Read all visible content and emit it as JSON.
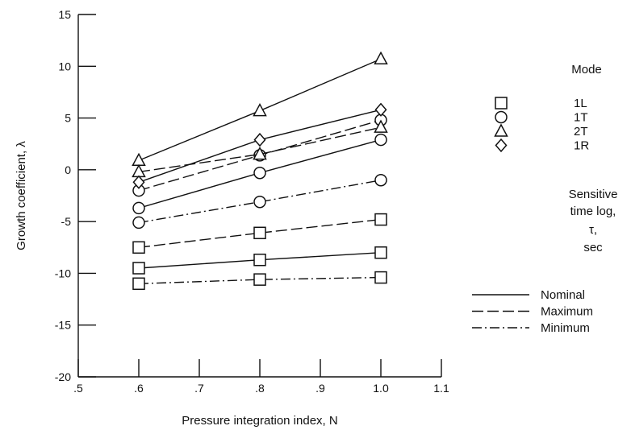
{
  "chart_data": {
    "type": "line",
    "title": "",
    "xlabel": "Pressure integration index, N",
    "ylabel": "Growth coefficient, λ",
    "xlim": [
      0.5,
      1.1
    ],
    "ylim": [
      -20,
      15
    ],
    "x_ticks": [
      0.5,
      0.6,
      0.7,
      0.8,
      0.9,
      1.0,
      1.1
    ],
    "x_tick_labels": [
      ".5",
      ".6",
      ".7",
      ".8",
      ".9",
      "1.0",
      "1.1"
    ],
    "y_ticks": [
      -20,
      -15,
      -10,
      -5,
      0,
      5,
      10,
      15
    ],
    "y_tick_labels": [
      "-20",
      "-15",
      "-10",
      "-5",
      "0",
      "5",
      "10",
      "15"
    ],
    "grid": false,
    "mode_legend": {
      "title": "Mode",
      "items": [
        {
          "marker": "square",
          "label": "1L"
        },
        {
          "marker": "circle",
          "label": "1T"
        },
        {
          "marker": "triangle",
          "label": "2T"
        },
        {
          "marker": "diamond",
          "label": "1R"
        }
      ]
    },
    "line_legend": {
      "title_lines": [
        "Sensitive",
        "time log,",
        "τ,",
        "sec"
      ],
      "items": [
        {
          "dash": "solid",
          "label": "Nominal"
        },
        {
          "dash": "dashed",
          "label": "Maximum"
        },
        {
          "dash": "dashdot",
          "label": "Minimum"
        }
      ]
    },
    "series": [
      {
        "mode": "1L",
        "tau": "Nominal",
        "marker": "square",
        "dash": "solid",
        "x": [
          0.6,
          0.8,
          1.0
        ],
        "y": [
          -9.5,
          -8.7,
          -8.0
        ]
      },
      {
        "mode": "1L",
        "tau": "Maximum",
        "marker": "square",
        "dash": "dashed",
        "x": [
          0.6,
          0.8,
          1.0
        ],
        "y": [
          -7.5,
          -6.1,
          -4.8
        ]
      },
      {
        "mode": "1L",
        "tau": "Minimum",
        "marker": "square",
        "dash": "dashdot",
        "x": [
          0.6,
          0.8,
          1.0
        ],
        "y": [
          -11.0,
          -10.6,
          -10.4
        ]
      },
      {
        "mode": "1T",
        "tau": "Nominal",
        "marker": "circle",
        "dash": "solid",
        "x": [
          0.6,
          0.8,
          1.0
        ],
        "y": [
          -3.7,
          -0.3,
          2.9
        ]
      },
      {
        "mode": "1T",
        "tau": "Maximum",
        "marker": "circle",
        "dash": "dashed",
        "x": [
          0.6,
          0.8,
          1.0
        ],
        "y": [
          -2.0,
          1.4,
          4.8
        ]
      },
      {
        "mode": "1T",
        "tau": "Minimum",
        "marker": "circle",
        "dash": "dashdot",
        "x": [
          0.6,
          0.8,
          1.0
        ],
        "y": [
          -5.1,
          -3.1,
          -1.0
        ]
      },
      {
        "mode": "2T",
        "tau": "Nominal",
        "marker": "triangle",
        "dash": "solid",
        "x": [
          0.6,
          0.8,
          1.0
        ],
        "y": [
          0.9,
          5.7,
          10.7
        ]
      },
      {
        "mode": "2T",
        "tau": "Maximum",
        "marker": "triangle",
        "dash": "dashed",
        "x": [
          0.6,
          0.8,
          1.0
        ],
        "y": [
          -0.2,
          1.5,
          4.1
        ]
      },
      {
        "mode": "1R",
        "tau": "Nominal",
        "marker": "diamond",
        "dash": "solid",
        "x": [
          0.6,
          0.8,
          1.0
        ],
        "y": [
          -1.2,
          2.9,
          5.8
        ]
      }
    ]
  }
}
